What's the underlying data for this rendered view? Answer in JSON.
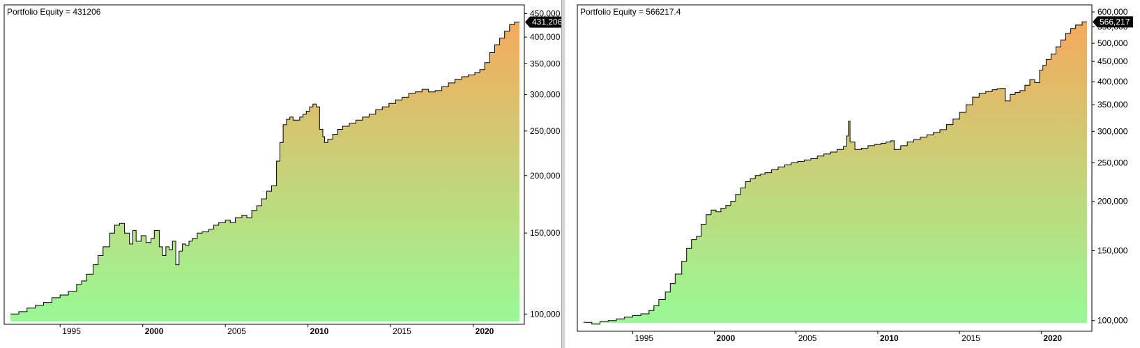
{
  "colors": {
    "fill_top": "#f7a85a",
    "fill_bottom": "#98f995",
    "line": "#000000",
    "badge": "#000000"
  },
  "chart_data": [
    {
      "type": "area",
      "title": "Portfolio Equity = 431206",
      "badge": "431,206",
      "y_scale": "log",
      "ylim": [
        95000,
        470000
      ],
      "xlim": [
        1991.7,
        2022.8
      ],
      "y_ticks": [
        100000,
        150000,
        200000,
        250000,
        300000,
        350000,
        400000,
        450000
      ],
      "y_tick_labels": [
        "100,000",
        "150,000",
        "200,000",
        "250,000",
        "300,000",
        "350,000",
        "400,000",
        "450,000"
      ],
      "x_ticks": [
        1995,
        2000,
        2005,
        2010,
        2015,
        2020
      ],
      "x_tick_labels": [
        "1995",
        "2000",
        "2005",
        "2010",
        "2015",
        "2020"
      ],
      "x_bold": [
        2000,
        2010,
        2020
      ],
      "x": [
        1992.0,
        1992.5,
        1993.0,
        1993.5,
        1994.0,
        1994.5,
        1995.0,
        1995.5,
        1996.0,
        1996.3,
        1996.6,
        1997.0,
        1997.3,
        1997.6,
        1998.0,
        1998.3,
        1998.6,
        1998.9,
        1999.2,
        1999.4,
        1999.6,
        1999.9,
        2000.2,
        2000.5,
        2000.7,
        2001.0,
        2001.2,
        2001.4,
        2001.6,
        2001.8,
        2002.0,
        2002.2,
        2002.4,
        2002.6,
        2002.8,
        2003.0,
        2003.3,
        2003.6,
        2004.0,
        2004.3,
        2004.6,
        2005.0,
        2005.3,
        2005.6,
        2006.0,
        2006.3,
        2006.6,
        2006.9,
        2007.2,
        2007.5,
        2007.8,
        2008.1,
        2008.3,
        2008.5,
        2008.7,
        2008.9,
        2009.1,
        2009.3,
        2009.5,
        2009.7,
        2009.9,
        2010.1,
        2010.3,
        2010.5,
        2010.7,
        2010.9,
        2011.0,
        2011.2,
        2011.5,
        2011.8,
        2012.1,
        2012.5,
        2012.9,
        2013.3,
        2013.7,
        2014.1,
        2014.5,
        2014.9,
        2015.3,
        2015.7,
        2016.1,
        2016.5,
        2016.9,
        2017.3,
        2017.7,
        2018.1,
        2018.5,
        2018.9,
        2019.3,
        2019.7,
        2020.1,
        2020.4,
        2020.7,
        2021.0,
        2021.3,
        2021.6,
        2021.9,
        2022.2,
        2022.5
      ],
      "values": [
        100000,
        101200,
        103000,
        104500,
        106000,
        108500,
        110000,
        112000,
        116000,
        118000,
        122000,
        128000,
        134000,
        140000,
        150000,
        156000,
        157500,
        150000,
        142000,
        152000,
        144000,
        148000,
        143000,
        146000,
        152000,
        140000,
        134000,
        140000,
        138000,
        144000,
        128000,
        137000,
        142000,
        141000,
        144000,
        146000,
        150000,
        151000,
        153000,
        156000,
        158000,
        160000,
        158000,
        162000,
        164000,
        162000,
        168000,
        172000,
        178000,
        185000,
        190000,
        215000,
        236000,
        258000,
        265000,
        268000,
        264000,
        264000,
        268000,
        272000,
        276000,
        282000,
        286000,
        282000,
        252000,
        243000,
        236000,
        240000,
        246000,
        252000,
        256000,
        260000,
        264000,
        268000,
        272000,
        278000,
        282000,
        287000,
        292000,
        296000,
        302000,
        304000,
        308000,
        304000,
        306000,
        312000,
        318000,
        324000,
        328000,
        331000,
        335000,
        340000,
        352000,
        370000,
        385000,
        398000,
        412000,
        426000,
        431206
      ]
    },
    {
      "type": "area",
      "title": "Portfolio Equity = 566217.4",
      "badge": "566,217",
      "y_scale": "log",
      "ylim": [
        94000,
        625000
      ],
      "xlim": [
        1991.7,
        2022.8
      ],
      "y_ticks": [
        100000,
        150000,
        200000,
        250000,
        300000,
        350000,
        400000,
        450000,
        500000,
        550000,
        600000
      ],
      "y_tick_labels": [
        "100,000",
        "150,000",
        "200,000",
        "250,000",
        "300,000",
        "350,000",
        "400,000",
        "450,000",
        "500,000",
        "550,000",
        "600,000"
      ],
      "x_ticks": [
        1995,
        2000,
        2005,
        2010,
        2015,
        2020
      ],
      "x_tick_labels": [
        "1995",
        "2000",
        "2005",
        "2010",
        "2015",
        "2020"
      ],
      "x_bold": [
        2000,
        2010,
        2020
      ],
      "x": [
        1992.0,
        1992.5,
        1993.0,
        1993.5,
        1994.0,
        1994.5,
        1995.0,
        1995.5,
        1996.0,
        1996.3,
        1996.6,
        1997.0,
        1997.3,
        1997.6,
        1998.0,
        1998.3,
        1998.6,
        1998.9,
        1999.2,
        1999.5,
        1999.8,
        2000.1,
        2000.4,
        2000.7,
        2001.0,
        2001.3,
        2001.6,
        2001.9,
        2002.2,
        2002.5,
        2002.8,
        2003.1,
        2003.5,
        2003.9,
        2004.3,
        2004.7,
        2005.1,
        2005.5,
        2005.9,
        2006.3,
        2006.7,
        2007.1,
        2007.5,
        2007.9,
        2008.1,
        2008.2,
        2008.3,
        2008.6,
        2009.0,
        2009.4,
        2009.8,
        2010.2,
        2010.5,
        2010.8,
        2011.0,
        2011.4,
        2011.8,
        2012.2,
        2012.6,
        2013.0,
        2013.4,
        2013.8,
        2014.2,
        2014.6,
        2015.0,
        2015.4,
        2015.8,
        2016.2,
        2016.6,
        2017.0,
        2017.3,
        2017.5,
        2017.8,
        2018.1,
        2018.4,
        2018.7,
        2019.0,
        2019.3,
        2019.6,
        2019.9,
        2020.1,
        2020.3,
        2020.6,
        2020.9,
        2021.2,
        2021.5,
        2021.8,
        2022.1,
        2022.5
      ],
      "values": [
        99000,
        98000,
        99500,
        100000,
        101000,
        102000,
        103000,
        104000,
        106000,
        109000,
        113000,
        118000,
        124000,
        131000,
        141000,
        152000,
        160000,
        163000,
        175000,
        185000,
        190000,
        188000,
        192000,
        195000,
        200000,
        208000,
        216000,
        224000,
        228000,
        232000,
        234000,
        236000,
        240000,
        244000,
        247000,
        250000,
        252000,
        254000,
        256000,
        260000,
        263000,
        266000,
        270000,
        275000,
        292000,
        318000,
        282000,
        270000,
        272000,
        276000,
        278000,
        280000,
        282000,
        284000,
        270000,
        276000,
        282000,
        286000,
        290000,
        294000,
        298000,
        303000,
        312000,
        322000,
        335000,
        350000,
        366000,
        374000,
        378000,
        382000,
        384000,
        385000,
        358000,
        372000,
        376000,
        380000,
        392000,
        405000,
        398000,
        428000,
        440000,
        455000,
        470000,
        490000,
        510000,
        530000,
        545000,
        556000,
        566217
      ]
    }
  ]
}
